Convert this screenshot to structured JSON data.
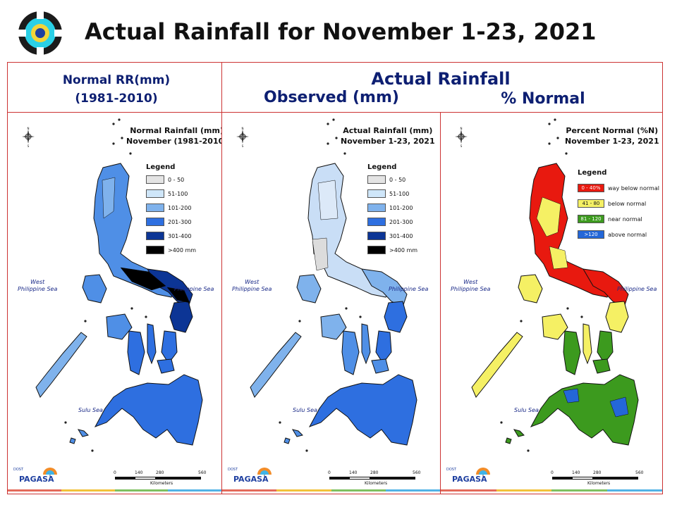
{
  "title": "Actual Rainfall for November 1-23, 2021",
  "headers": {
    "normal_line1": "Normal RR(mm)",
    "normal_line2": "(1981-2010)",
    "actual": "Actual Rainfall",
    "observed": "Observed (mm)",
    "percent": "% Normal"
  },
  "panels": [
    {
      "title_line1": "Normal Rainfall (mm)",
      "title_line2": "November (1981-2010)",
      "legend_title": "Legend",
      "legend": [
        {
          "label": "0 - 50",
          "color": "#e4e4e4"
        },
        {
          "label": "51-100",
          "color": "#cfe6f9"
        },
        {
          "label": "101-200",
          "color": "#7fb2ec"
        },
        {
          "label": "201-300",
          "color": "#2e6fe0"
        },
        {
          "label": "301-400",
          "color": "#0c3595"
        },
        {
          "label": ">400 mm",
          "color": "#000000"
        }
      ],
      "sea_west": "West\nPhilippine Sea",
      "sea_east": "Philippine Sea",
      "sea_sulu": "Sulu Sea"
    },
    {
      "title_line1": "Actual Rainfall (mm)",
      "title_line2": "November 1-23, 2021",
      "legend_title": "Legend",
      "legend": [
        {
          "label": "0 - 50",
          "color": "#e4e4e4"
        },
        {
          "label": "51-100",
          "color": "#cfe6f9"
        },
        {
          "label": "101-200",
          "color": "#7fb2ec"
        },
        {
          "label": "201-300",
          "color": "#2e6fe0"
        },
        {
          "label": "301-400",
          "color": "#0c3595"
        },
        {
          "label": ">400 mm",
          "color": "#000000"
        }
      ],
      "sea_west": "West\nPhilippine Sea",
      "sea_east": "Philippine Sea",
      "sea_sulu": "Sulu Sea"
    },
    {
      "title_line1": "Percent Normal (%N)",
      "title_line2": "November 1-23, 2021",
      "legend_title": "Legend",
      "legend": [
        {
          "box": "0 - 40%",
          "label": "way below normal",
          "color": "#e8190f"
        },
        {
          "box": "41 - 80",
          "label": "below normal",
          "color": "#f5f064"
        },
        {
          "box": "81 - 120",
          "label": "near normal",
          "color": "#3c9a1e"
        },
        {
          "box": ">120",
          "label": "above normal",
          "color": "#2467d8"
        }
      ],
      "sea_west": "West\nPhilippine Sea",
      "sea_east": "Philippine Sea",
      "sea_sulu": "Sulu Sea"
    }
  ],
  "scale": {
    "ticks": [
      "0",
      "140",
      "280",
      "560"
    ],
    "unit": "Kilometers"
  },
  "compass_labels": {
    "n": "N",
    "s": "S"
  },
  "branding": {
    "text": "PAGASA",
    "sub": "DOST"
  }
}
